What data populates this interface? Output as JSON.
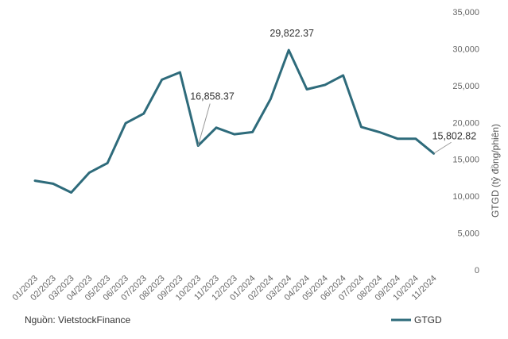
{
  "chart_data": {
    "type": "line",
    "categories": [
      "01/2023",
      "02/2023",
      "03/2023",
      "04/2023",
      "05/2023",
      "06/2023",
      "07/2023",
      "08/2023",
      "09/2023",
      "10/2023",
      "11/2023",
      "12/2023",
      "01/2024",
      "02/2024",
      "03/2024",
      "04/2024",
      "05/2024",
      "06/2024",
      "07/2024",
      "08/2024",
      "09/2024",
      "10/2024",
      "11/2024"
    ],
    "series": [
      {
        "name": "GTGD",
        "color": "#2e6b7b",
        "values": [
          12100,
          11700,
          10500,
          13200,
          14500,
          19900,
          21200,
          25800,
          26800,
          16858.37,
          19300,
          18400,
          18700,
          23200,
          29822.37,
          24500,
          25100,
          26400,
          19400,
          18700,
          17800,
          17800,
          15802.82
        ]
      }
    ],
    "annotations": [
      {
        "index": 9,
        "label": "16,858.37"
      },
      {
        "index": 14,
        "label": "29,822.37"
      },
      {
        "index": 22,
        "label": "15,802.82"
      }
    ],
    "ylabel": "GTGD  (tỷ đồng/phiên)",
    "ylim": [
      0,
      35000
    ],
    "yticks": [
      "0",
      "5,000",
      "10,000",
      "15,000",
      "20,000",
      "25,000",
      "30,000",
      "35,000"
    ],
    "grid": false,
    "legend": "bottom-right"
  },
  "source": "Nguồn: VietstockFinance"
}
